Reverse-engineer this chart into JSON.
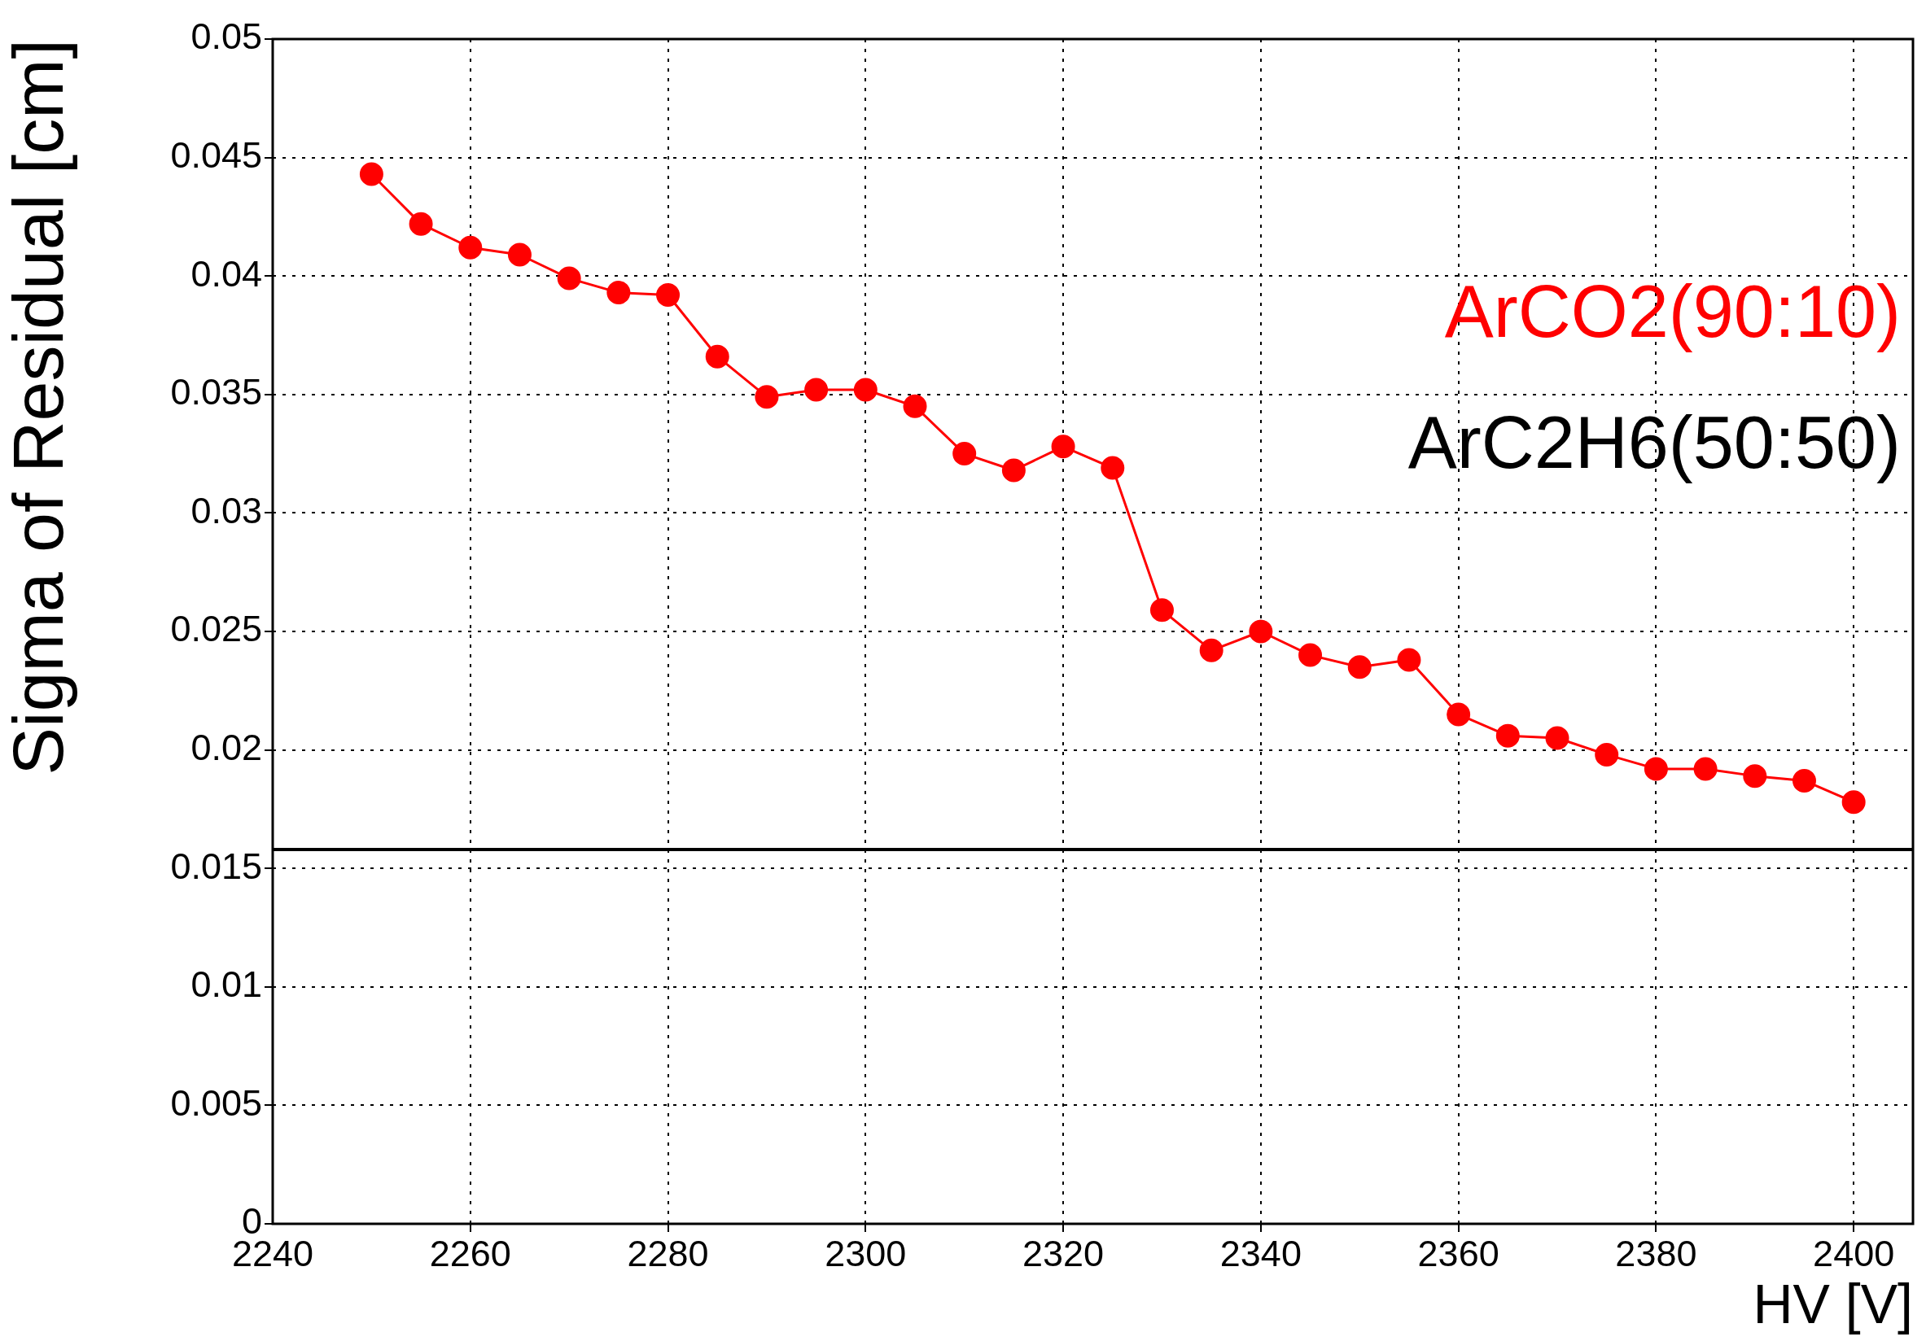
{
  "chart_data": {
    "type": "line",
    "xlabel": "HV [V]",
    "ylabel": "Sigma of Residual [cm]",
    "xlim": [
      2240,
      2406
    ],
    "xticks": [
      2240,
      2260,
      2280,
      2300,
      2320,
      2340,
      2360,
      2380,
      2400
    ],
    "ylim": [
      0,
      0.05
    ],
    "yticks": [
      0,
      0.005,
      0.01,
      0.015,
      0.02,
      0.025,
      0.03,
      0.035,
      0.04,
      0.045,
      0.05
    ],
    "grid": true,
    "line_style": "solid",
    "series": [
      {
        "name": "ArCO2(90:10)",
        "color": "#ff0000",
        "marker": "circle",
        "x": [
          2250,
          2255,
          2260,
          2265,
          2270,
          2275,
          2280,
          2285,
          2290,
          2295,
          2300,
          2305,
          2310,
          2315,
          2320,
          2325,
          2330,
          2335,
          2340,
          2345,
          2350,
          2355,
          2360,
          2365,
          2370,
          2375,
          2380,
          2385,
          2390,
          2395,
          2400
        ],
        "values": [
          0.0443,
          0.0422,
          0.0412,
          0.0409,
          0.0399,
          0.0393,
          0.0392,
          0.0366,
          0.0349,
          0.0352,
          0.0352,
          0.0345,
          0.0325,
          0.0318,
          0.0328,
          0.0319,
          0.0259,
          0.0242,
          0.025,
          0.024,
          0.0235,
          0.0238,
          0.0215,
          0.0206,
          0.0205,
          0.0198,
          0.0192,
          0.0192,
          0.0189,
          0.0187,
          0.0178
        ]
      },
      {
        "name": "ArC2H6(50:50)",
        "color": "#000000",
        "marker": "none",
        "x": [
          2240,
          2406
        ],
        "values": [
          0.0158,
          0.0158
        ]
      }
    ]
  }
}
